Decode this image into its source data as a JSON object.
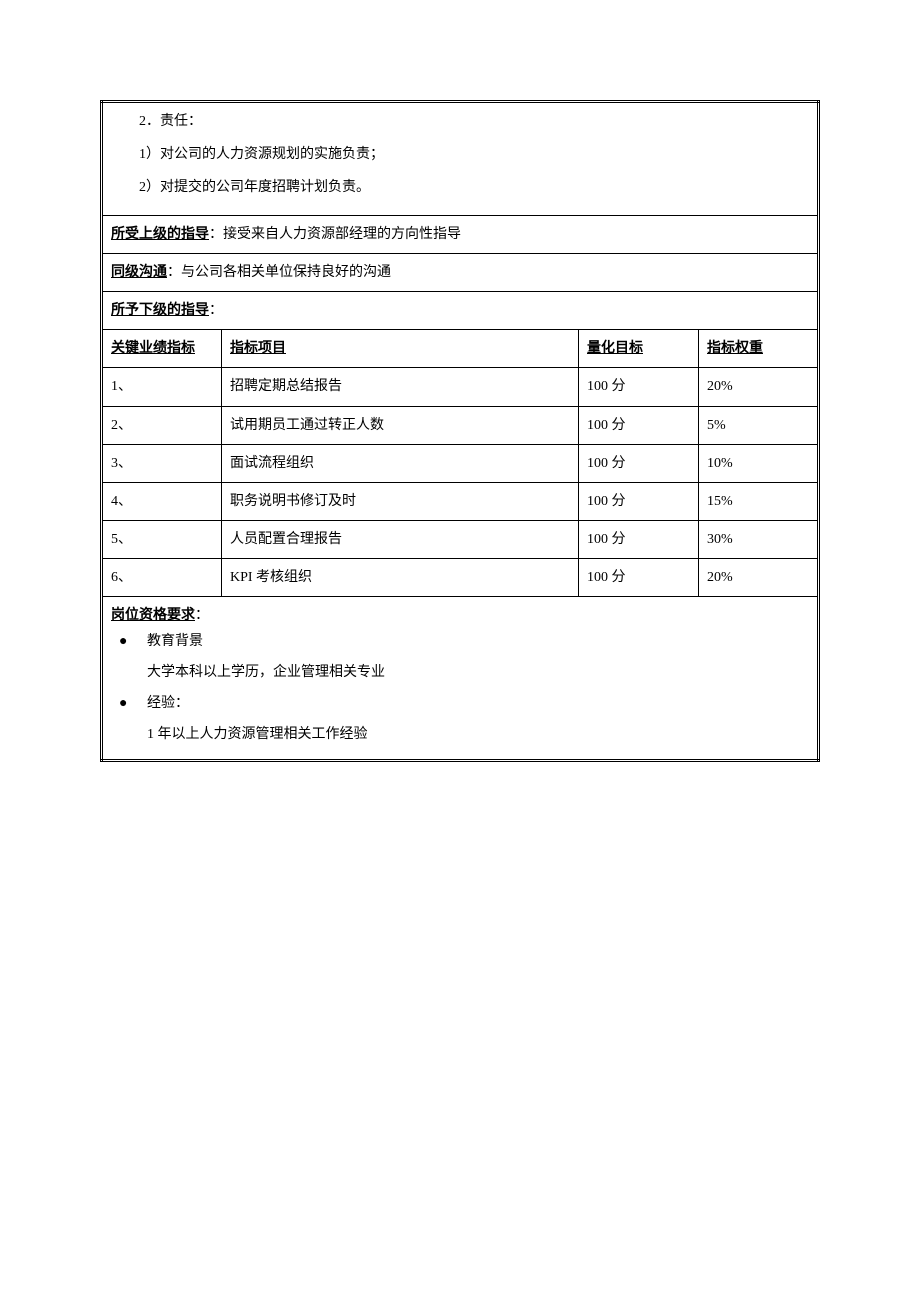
{
  "responsibilities": {
    "heading": "2．责任：",
    "items": [
      "1）对公司的人力资源规划的实施负责；",
      "2）对提交的公司年度招聘计划负责。"
    ]
  },
  "guidance": {
    "supervisor_label": "所受上级的指导",
    "supervisor_value": "：接受来自人力资源部经理的方向性指导",
    "peer_label": "同级沟通",
    "peer_value": "：与公司各相关单位保持良好的沟通",
    "subordinate_label": "所予下级的指导",
    "subordinate_value": "："
  },
  "kpi": {
    "header": {
      "col1": "关键业绩指标",
      "col2": "指标项目",
      "col3": "量化目标",
      "col4": "指标权重"
    },
    "rows": [
      {
        "num": "1、",
        "project": "招聘定期总结报告",
        "target": "100 分",
        "weight": "20%"
      },
      {
        "num": "2、",
        "project": "试用期员工通过转正人数",
        "target": "100 分",
        "weight": "5%"
      },
      {
        "num": "3、",
        "project": "面试流程组织",
        "target": "100 分",
        "weight": "10%"
      },
      {
        "num": "4、",
        "project": "职务说明书修订及时",
        "target": "100 分",
        "weight": "15%"
      },
      {
        "num": "5、",
        "project": "人员配置合理报告",
        "target": "100 分",
        "weight": "30%"
      },
      {
        "num": "6、",
        "project": "KPI 考核组织",
        "target": "100 分",
        "weight": "20%"
      }
    ]
  },
  "requirements": {
    "heading_label": "岗位资格要求",
    "heading_colon": "：",
    "bullets": [
      {
        "title": "教育背景",
        "detail": "大学本科以上学历，企业管理相关专业"
      },
      {
        "title": "经验：",
        "detail": "1 年以上人力资源管理相关工作经验"
      }
    ]
  },
  "styling": {
    "font_family": "SimSun",
    "font_size_pt": 11,
    "text_color": "#000000",
    "background_color": "#ffffff",
    "border_color": "#000000"
  }
}
